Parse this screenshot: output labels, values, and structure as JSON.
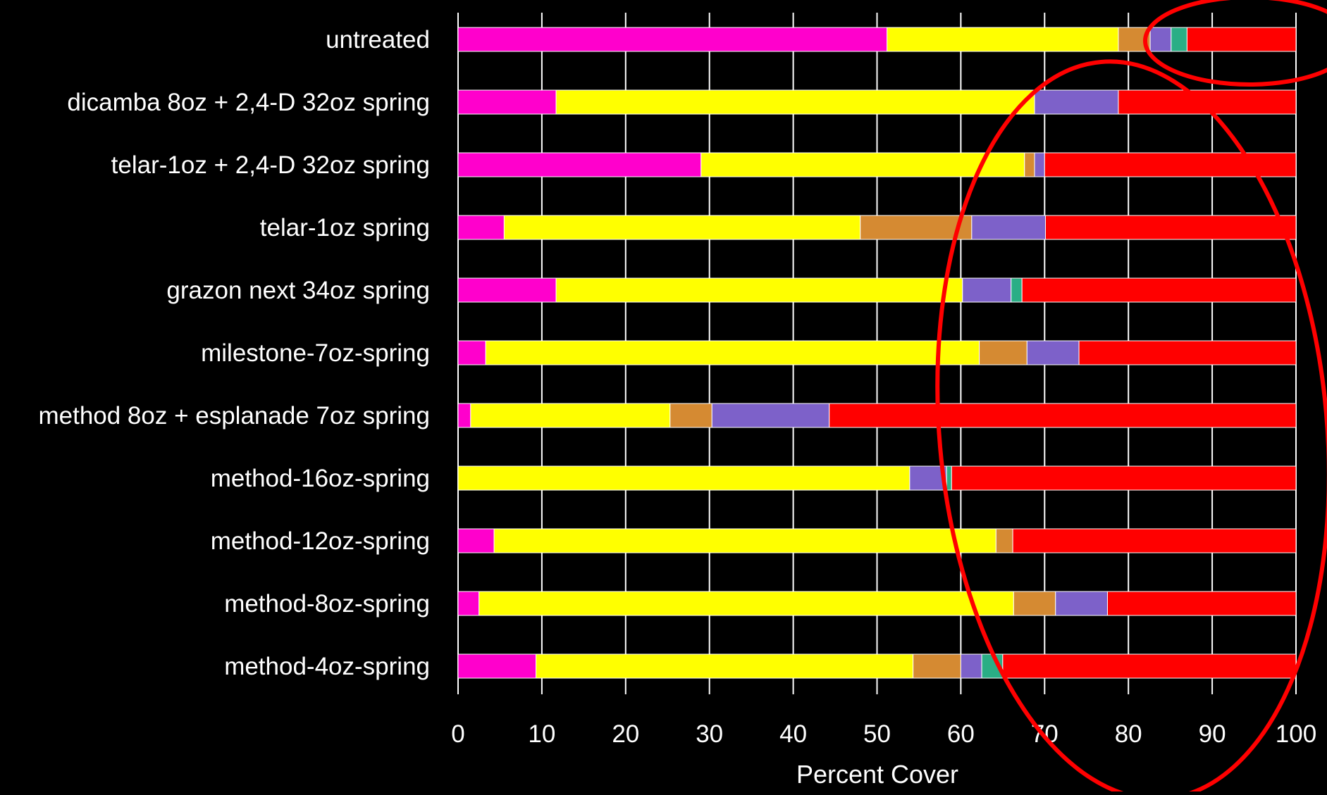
{
  "chart_data": {
    "type": "bar",
    "orientation": "horizontal",
    "stacked": true,
    "categories": [
      "untreated",
      "dicamba 8oz + 2,4-D 32oz spring",
      "telar-1oz + 2,4-D 32oz spring",
      "telar-1oz spring",
      "grazon next 34oz spring",
      "milestone-7oz-spring",
      "method 8oz + esplanade 7oz spring",
      "method-16oz-spring",
      "method-12oz-spring",
      "method-8oz-spring",
      "method-4oz-spring"
    ],
    "series": [
      {
        "color": "#ff00cc",
        "values": [
          51.2,
          11.7,
          29.0,
          5.5,
          11.7,
          3.3,
          1.5,
          0.0,
          4.3,
          2.5,
          9.3
        ]
      },
      {
        "color": "#ffff00",
        "values": [
          27.6,
          57.1,
          38.6,
          42.5,
          48.5,
          58.9,
          23.8,
          53.9,
          59.9,
          63.8,
          45.0
        ]
      },
      {
        "color": "#d58a32",
        "values": [
          3.8,
          0.0,
          1.2,
          13.3,
          0.0,
          5.7,
          5.0,
          0.0,
          2.0,
          5.0,
          5.7
        ]
      },
      {
        "color": "#7d61c9",
        "values": [
          2.5,
          10.0,
          1.2,
          8.8,
          5.8,
          6.2,
          14.0,
          4.4,
          0.0,
          6.2,
          2.5
        ]
      },
      {
        "color": "#2aae85",
        "values": [
          1.9,
          0.0,
          0.0,
          0.0,
          1.3,
          0.0,
          0.0,
          0.6,
          0.0,
          0.0,
          2.5
        ]
      },
      {
        "color": "#ff0000",
        "values": [
          13.0,
          21.2,
          30.0,
          29.9,
          32.7,
          25.9,
          55.7,
          41.1,
          33.8,
          22.5,
          35.0
        ]
      }
    ],
    "xlabel": "Percent Cover",
    "xlim": [
      0,
      100
    ],
    "xticks": [
      0,
      10,
      20,
      30,
      40,
      50,
      60,
      70,
      80,
      90,
      100
    ],
    "grid": "vertical",
    "background": "#000000",
    "annotation_color": "#ff0000"
  }
}
